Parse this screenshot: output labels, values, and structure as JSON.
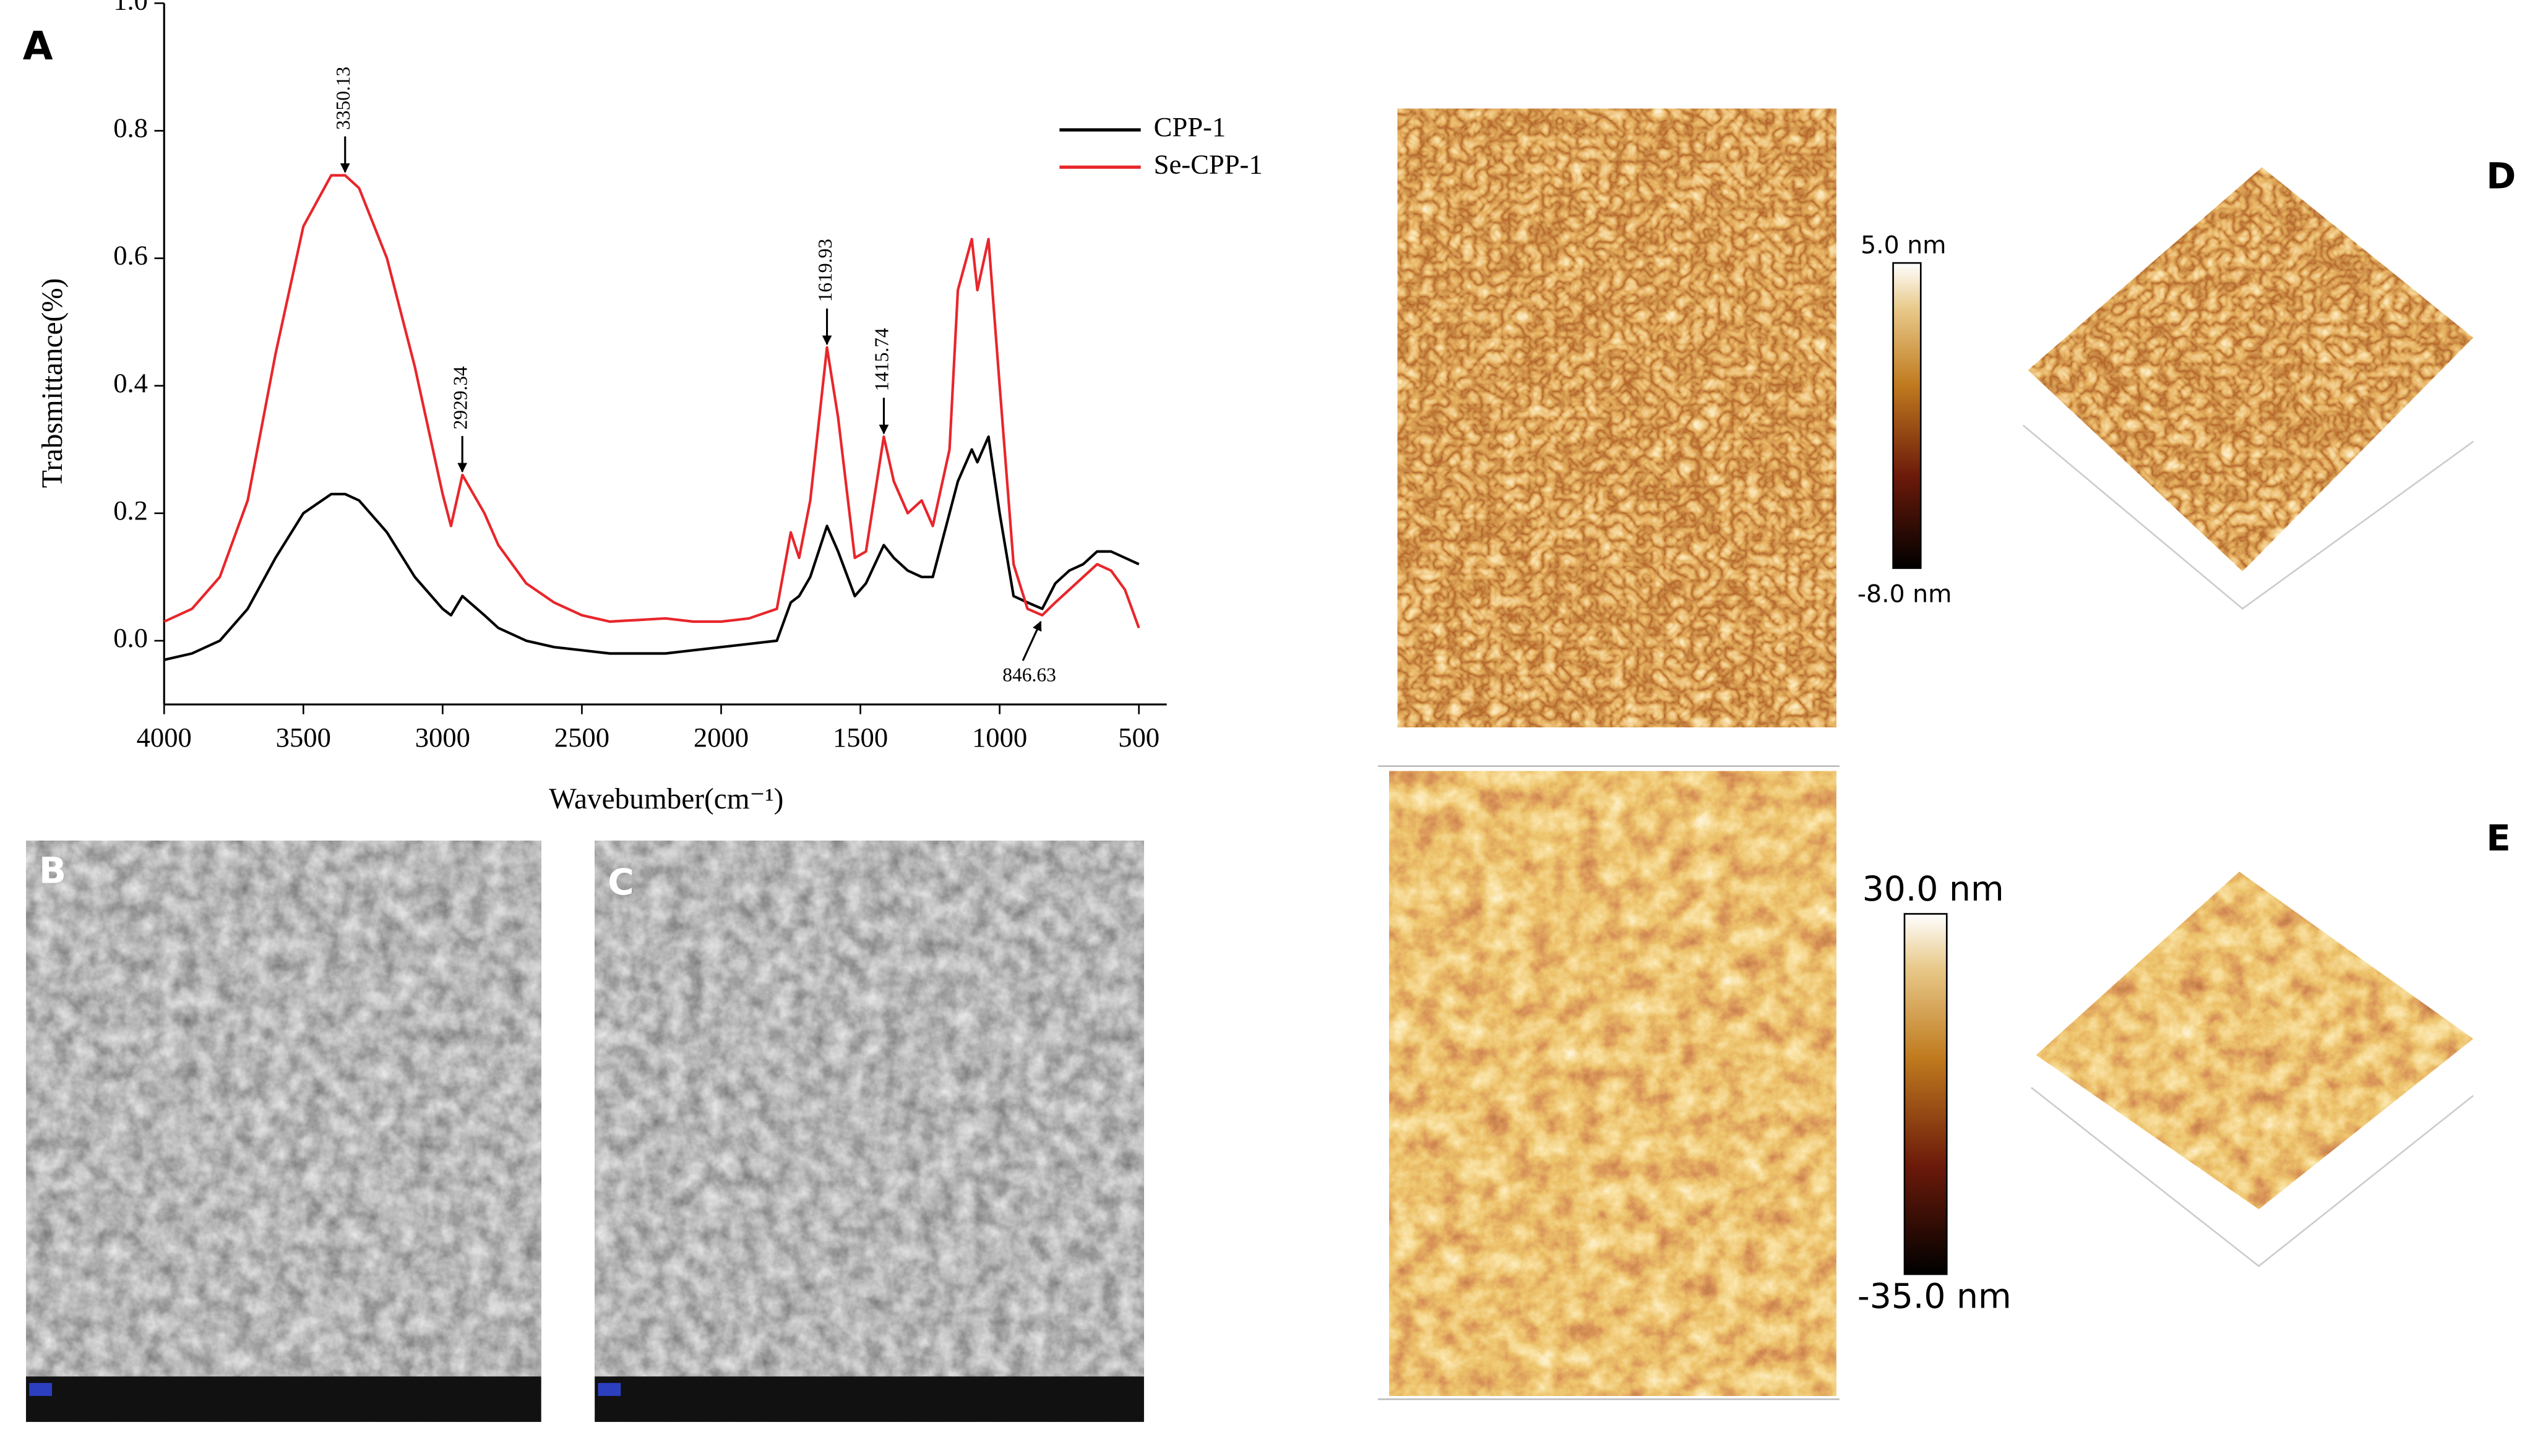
{
  "chart_data": {
    "type": "line",
    "x_label": "Wavebumber(cm⁻¹)",
    "y_label": "Trabsmittance(%)",
    "xlim": [
      4000,
      400
    ],
    "ylim": [
      -0.1,
      1.0
    ],
    "xticks": [
      4000,
      3500,
      3000,
      2500,
      2000,
      1500,
      1000,
      500
    ],
    "yticks": [
      {
        "value": 0,
        "label": "0.0"
      },
      {
        "value": 0.2,
        "label": "0.2"
      },
      {
        "value": 0.4,
        "label": "0.4"
      },
      {
        "value": 0.6,
        "label": "0.6"
      },
      {
        "value": 0.8,
        "label": "0.8"
      },
      {
        "value": 1,
        "label": "1.0"
      }
    ],
    "legend": "upper right",
    "x": [
      4000,
      3900,
      3800,
      3700,
      3600,
      3500,
      3400,
      3350,
      3300,
      3200,
      3100,
      3000,
      2970,
      2929,
      2850,
      2800,
      2700,
      2600,
      2500,
      2400,
      2200,
      2100,
      2000,
      1900,
      1800,
      1750,
      1720,
      1680,
      1620,
      1580,
      1520,
      1480,
      1416,
      1380,
      1330,
      1280,
      1240,
      1180,
      1150,
      1100,
      1080,
      1040,
      1000,
      950,
      900,
      847,
      800,
      750,
      700,
      650,
      600,
      550,
      500
    ],
    "series": [
      {
        "name": "CPP-1",
        "color": "#000000",
        "values": [
          -0.03,
          -0.02,
          0.0,
          0.05,
          0.13,
          0.2,
          0.23,
          0.23,
          0.22,
          0.17,
          0.1,
          0.05,
          0.04,
          0.07,
          0.04,
          0.02,
          0.0,
          -0.01,
          -0.015,
          -0.02,
          -0.02,
          -0.015,
          -0.01,
          -0.005,
          0.0,
          0.06,
          0.07,
          0.1,
          0.18,
          0.14,
          0.07,
          0.09,
          0.15,
          0.13,
          0.11,
          0.1,
          0.1,
          0.2,
          0.25,
          0.3,
          0.28,
          0.32,
          0.2,
          0.07,
          0.06,
          0.05,
          0.09,
          0.11,
          0.12,
          0.14,
          0.14,
          0.13,
          0.12
        ]
      },
      {
        "name": "Se-CPP-1",
        "color": "#e8262b",
        "values": [
          0.03,
          0.05,
          0.1,
          0.22,
          0.45,
          0.65,
          0.73,
          0.73,
          0.71,
          0.6,
          0.43,
          0.23,
          0.18,
          0.26,
          0.2,
          0.15,
          0.09,
          0.06,
          0.04,
          0.03,
          0.035,
          0.03,
          0.03,
          0.035,
          0.05,
          0.17,
          0.13,
          0.22,
          0.46,
          0.35,
          0.13,
          0.14,
          0.32,
          0.25,
          0.2,
          0.22,
          0.18,
          0.3,
          0.55,
          0.63,
          0.55,
          0.63,
          0.4,
          0.12,
          0.05,
          0.04,
          0.06,
          0.08,
          0.1,
          0.12,
          0.11,
          0.08,
          0.02
        ]
      }
    ],
    "annotations": [
      {
        "text": "3350.13",
        "x": 3350.13,
        "y": 0.73
      },
      {
        "text": "2929.34",
        "x": 2929.34,
        "y": 0.26
      },
      {
        "text": "1619.93",
        "x": 1619.93,
        "y": 0.46
      },
      {
        "text": "1415.74",
        "x": 1415.74,
        "y": 0.32
      },
      {
        "text": "846.63",
        "x": 846.63,
        "y": 0.04
      }
    ]
  },
  "panel_labels": [
    "A",
    "B",
    "C",
    "D",
    "E"
  ],
  "afm_scales": [
    {
      "max": "5.0 nm",
      "min": "-8.0 nm"
    },
    {
      "max": "30.0 nm",
      "min": "-35.0 nm"
    }
  ]
}
